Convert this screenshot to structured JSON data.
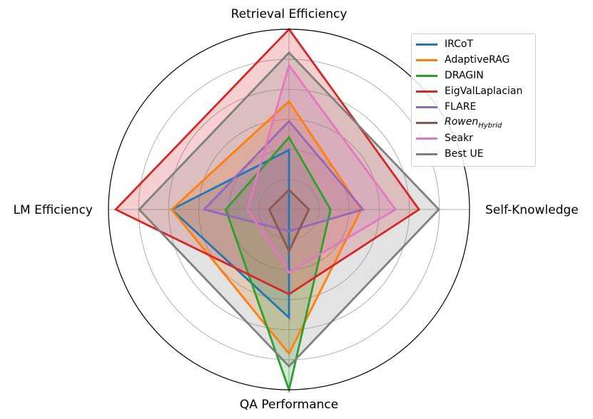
{
  "chart_data": {
    "type": "radar",
    "axes": [
      "Retrieval Efficiency",
      "Self-Knowledge",
      "QA Performance",
      "LM Efficiency"
    ],
    "rmax": 1.0,
    "rings": 6,
    "grid": true,
    "legend_position": "top-right",
    "series": [
      {
        "name": "IRCoT",
        "values": [
          0.33,
          0.0,
          0.6,
          0.65
        ],
        "color": "#1f77b4"
      },
      {
        "name": "AdaptiveRAG",
        "values": [
          0.6,
          0.4,
          0.8,
          0.65
        ],
        "color": "#ff7f0e"
      },
      {
        "name": "DRAGIN",
        "values": [
          0.4,
          0.23,
          1.0,
          0.35
        ],
        "color": "#2ca02c"
      },
      {
        "name": "EigValLaplacian",
        "values": [
          1.0,
          0.72,
          0.47,
          0.96
        ],
        "color": "#d62728"
      },
      {
        "name": "FLARE",
        "values": [
          0.49,
          0.41,
          0.12,
          0.47
        ],
        "color": "#9467bd"
      },
      {
        "name": "Rowen",
        "name_sub": "Hybrid",
        "values": [
          0.11,
          0.11,
          0.23,
          0.11
        ],
        "color": "#8c564b"
      },
      {
        "name": "Seakr",
        "values": [
          0.8,
          0.59,
          0.35,
          0.23
        ],
        "color": "#e377c2"
      },
      {
        "name": "Best UE",
        "values": [
          0.87,
          0.83,
          0.87,
          0.83
        ],
        "color": "#7f7f7f"
      }
    ]
  }
}
